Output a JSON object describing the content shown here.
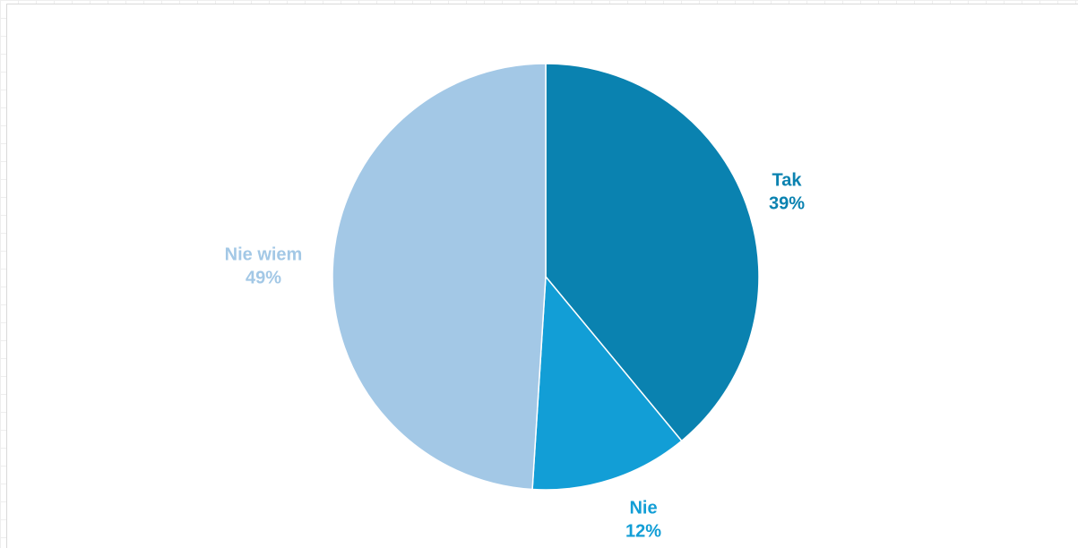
{
  "chart_data": {
    "type": "pie",
    "categories": [
      "Tak",
      "Nie",
      "Nie wiem"
    ],
    "values": [
      39,
      12,
      49
    ],
    "value_labels": [
      "39%",
      "12%",
      "49%"
    ],
    "colors": [
      "#0a82b0",
      "#129ed6",
      "#a3c8e6"
    ],
    "start_angle_deg": 0,
    "direction": "clockwise",
    "legend": "none"
  }
}
